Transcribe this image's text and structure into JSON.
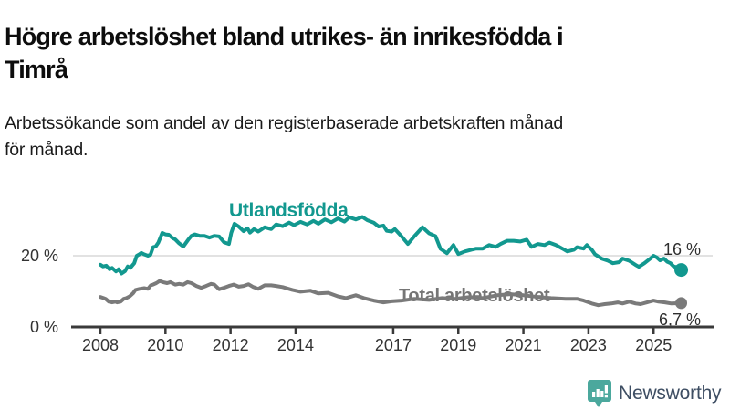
{
  "header": {
    "title_line1": "Högre arbetslöshet bland utrikes- än inrikesfödda i",
    "title_line2": "Timrå",
    "subtitle_line1": "Arbetssökande som andel av den registerbaserade arbetskraften månad",
    "subtitle_line2": "för månad."
  },
  "chart_data": {
    "type": "line",
    "unit": "%",
    "x_axis": {
      "range": [
        2007.9,
        2026.2
      ],
      "ticks": [
        2008,
        2010,
        2012,
        2014,
        2017,
        2019,
        2021,
        2023,
        2025
      ]
    },
    "y_axis": {
      "range": [
        0,
        33
      ],
      "ticks": [
        {
          "value": 0,
          "label": "0 %"
        },
        {
          "value": 20,
          "label": "20 %"
        }
      ]
    },
    "grid": "horizontal-20-only",
    "legend_position": "inline-labels",
    "series": [
      {
        "name": "Utlandsfödda",
        "color": "#12988F",
        "end_label": "16 %",
        "end_value": 16.0,
        "points": [
          [
            2008.0,
            17.5
          ],
          [
            2008.08,
            17.0
          ],
          [
            2008.18,
            17.2
          ],
          [
            2008.28,
            16.2
          ],
          [
            2008.36,
            16.6
          ],
          [
            2008.48,
            15.6
          ],
          [
            2008.56,
            16.2
          ],
          [
            2008.65,
            15.0
          ],
          [
            2008.76,
            15.7
          ],
          [
            2008.84,
            17.0
          ],
          [
            2008.92,
            16.6
          ],
          [
            2009.04,
            17.9
          ],
          [
            2009.12,
            20.0
          ],
          [
            2009.2,
            20.4
          ],
          [
            2009.26,
            20.8
          ],
          [
            2009.34,
            20.4
          ],
          [
            2009.46,
            20.0
          ],
          [
            2009.54,
            20.3
          ],
          [
            2009.62,
            22.4
          ],
          [
            2009.7,
            22.6
          ],
          [
            2009.78,
            23.7
          ],
          [
            2009.84,
            25.0
          ],
          [
            2009.9,
            26.4
          ],
          [
            2010.0,
            26.0
          ],
          [
            2010.1,
            25.9
          ],
          [
            2010.2,
            25.1
          ],
          [
            2010.3,
            24.6
          ],
          [
            2010.42,
            23.5
          ],
          [
            2010.55,
            22.6
          ],
          [
            2010.7,
            24.5
          ],
          [
            2010.8,
            25.6
          ],
          [
            2010.9,
            26.0
          ],
          [
            2011.05,
            25.6
          ],
          [
            2011.2,
            25.6
          ],
          [
            2011.35,
            25.1
          ],
          [
            2011.5,
            25.6
          ],
          [
            2011.65,
            25.4
          ],
          [
            2011.8,
            23.8
          ],
          [
            2011.95,
            23.3
          ],
          [
            2012.02,
            26.4
          ],
          [
            2012.12,
            29.0
          ],
          [
            2012.25,
            28.2
          ],
          [
            2012.4,
            26.9
          ],
          [
            2012.52,
            27.7
          ],
          [
            2012.6,
            26.5
          ],
          [
            2012.72,
            27.5
          ],
          [
            2012.85,
            26.8
          ],
          [
            2013.05,
            28.0
          ],
          [
            2013.25,
            27.5
          ],
          [
            2013.4,
            28.8
          ],
          [
            2013.6,
            28.3
          ],
          [
            2013.8,
            29.3
          ],
          [
            2013.95,
            28.6
          ],
          [
            2014.15,
            29.5
          ],
          [
            2014.35,
            28.8
          ],
          [
            2014.55,
            29.8
          ],
          [
            2014.7,
            29.0
          ],
          [
            2014.9,
            30.2
          ],
          [
            2015.1,
            29.4
          ],
          [
            2015.3,
            30.5
          ],
          [
            2015.5,
            29.6
          ],
          [
            2015.65,
            30.8
          ],
          [
            2015.85,
            30.2
          ],
          [
            2016.05,
            30.9
          ],
          [
            2016.2,
            30.0
          ],
          [
            2016.4,
            29.3
          ],
          [
            2016.55,
            28.2
          ],
          [
            2016.7,
            28.5
          ],
          [
            2016.8,
            27.0
          ],
          [
            2016.95,
            26.8
          ],
          [
            2017.05,
            27.5
          ],
          [
            2017.25,
            25.5
          ],
          [
            2017.45,
            23.3
          ],
          [
            2017.65,
            25.5
          ],
          [
            2017.9,
            28.0
          ],
          [
            2018.1,
            26.3
          ],
          [
            2018.3,
            25.5
          ],
          [
            2018.45,
            22.0
          ],
          [
            2018.65,
            20.7
          ],
          [
            2018.85,
            23.0
          ],
          [
            2019.0,
            20.5
          ],
          [
            2019.2,
            21.2
          ],
          [
            2019.4,
            21.7
          ],
          [
            2019.55,
            22.0
          ],
          [
            2019.75,
            22.0
          ],
          [
            2019.95,
            23.0
          ],
          [
            2020.15,
            22.5
          ],
          [
            2020.3,
            23.3
          ],
          [
            2020.5,
            24.2
          ],
          [
            2020.7,
            24.2
          ],
          [
            2020.9,
            24.0
          ],
          [
            2021.1,
            24.5
          ],
          [
            2021.25,
            22.5
          ],
          [
            2021.45,
            23.3
          ],
          [
            2021.65,
            23.0
          ],
          [
            2021.8,
            23.7
          ],
          [
            2022.0,
            23.0
          ],
          [
            2022.2,
            22.0
          ],
          [
            2022.35,
            21.2
          ],
          [
            2022.55,
            21.7
          ],
          [
            2022.65,
            22.4
          ],
          [
            2022.85,
            22.0
          ],
          [
            2022.95,
            23.0
          ],
          [
            2023.1,
            21.7
          ],
          [
            2023.2,
            20.4
          ],
          [
            2023.4,
            19.2
          ],
          [
            2023.6,
            18.6
          ],
          [
            2023.75,
            17.9
          ],
          [
            2023.95,
            18.2
          ],
          [
            2024.05,
            19.2
          ],
          [
            2024.25,
            18.6
          ],
          [
            2024.45,
            17.4
          ],
          [
            2024.55,
            16.9
          ],
          [
            2024.72,
            17.9
          ],
          [
            2024.9,
            19.2
          ],
          [
            2025.0,
            20.0
          ],
          [
            2025.1,
            19.5
          ],
          [
            2025.2,
            18.7
          ],
          [
            2025.32,
            19.2
          ],
          [
            2025.42,
            18.3
          ],
          [
            2025.52,
            17.9
          ],
          [
            2025.62,
            17.0
          ],
          [
            2025.75,
            16.7
          ],
          [
            2025.85,
            16.0
          ]
        ]
      },
      {
        "name": "Total arbetslöshet",
        "color": "#7A7A7A",
        "end_label": "6,7 %",
        "end_value": 6.7,
        "points": [
          [
            2008.0,
            8.4
          ],
          [
            2008.1,
            8.1
          ],
          [
            2008.16,
            7.9
          ],
          [
            2008.26,
            7.1
          ],
          [
            2008.36,
            6.9
          ],
          [
            2008.46,
            7.1
          ],
          [
            2008.52,
            6.9
          ],
          [
            2008.62,
            7.1
          ],
          [
            2008.72,
            7.9
          ],
          [
            2008.8,
            8.1
          ],
          [
            2008.9,
            8.6
          ],
          [
            2009.0,
            9.4
          ],
          [
            2009.08,
            10.4
          ],
          [
            2009.2,
            10.7
          ],
          [
            2009.35,
            10.9
          ],
          [
            2009.46,
            10.7
          ],
          [
            2009.55,
            11.7
          ],
          [
            2009.62,
            11.9
          ],
          [
            2009.72,
            12.3
          ],
          [
            2009.82,
            12.9
          ],
          [
            2009.92,
            12.6
          ],
          [
            2010.05,
            12.3
          ],
          [
            2010.15,
            12.6
          ],
          [
            2010.3,
            11.9
          ],
          [
            2010.42,
            12.1
          ],
          [
            2010.55,
            11.9
          ],
          [
            2010.68,
            12.6
          ],
          [
            2010.8,
            12.3
          ],
          [
            2010.95,
            11.5
          ],
          [
            2011.1,
            11.0
          ],
          [
            2011.25,
            11.5
          ],
          [
            2011.4,
            12.1
          ],
          [
            2011.5,
            11.9
          ],
          [
            2011.65,
            10.6
          ],
          [
            2011.8,
            11.0
          ],
          [
            2011.95,
            11.5
          ],
          [
            2012.1,
            11.9
          ],
          [
            2012.25,
            11.3
          ],
          [
            2012.4,
            11.5
          ],
          [
            2012.55,
            12.0
          ],
          [
            2012.7,
            11.2
          ],
          [
            2012.85,
            10.7
          ],
          [
            2013.05,
            11.7
          ],
          [
            2013.25,
            11.7
          ],
          [
            2013.4,
            11.5
          ],
          [
            2013.6,
            11.2
          ],
          [
            2013.9,
            10.4
          ],
          [
            2014.15,
            9.9
          ],
          [
            2014.45,
            10.2
          ],
          [
            2014.7,
            9.4
          ],
          [
            2015.0,
            9.6
          ],
          [
            2015.3,
            8.6
          ],
          [
            2015.55,
            8.1
          ],
          [
            2015.85,
            8.9
          ],
          [
            2016.1,
            8.1
          ],
          [
            2016.4,
            7.4
          ],
          [
            2016.7,
            6.9
          ],
          [
            2016.95,
            7.2
          ],
          [
            2017.25,
            7.4
          ],
          [
            2017.65,
            7.9
          ],
          [
            2018.1,
            7.6
          ],
          [
            2018.5,
            8.1
          ],
          [
            2018.9,
            7.9
          ],
          [
            2019.35,
            8.4
          ],
          [
            2019.75,
            8.1
          ],
          [
            2020.2,
            8.9
          ],
          [
            2020.6,
            9.2
          ],
          [
            2021.0,
            8.9
          ],
          [
            2021.45,
            8.4
          ],
          [
            2021.85,
            8.1
          ],
          [
            2022.3,
            7.9
          ],
          [
            2022.65,
            7.9
          ],
          [
            2022.85,
            7.4
          ],
          [
            2023.1,
            6.6
          ],
          [
            2023.3,
            6.1
          ],
          [
            2023.5,
            6.4
          ],
          [
            2023.7,
            6.6
          ],
          [
            2023.9,
            6.9
          ],
          [
            2024.05,
            6.6
          ],
          [
            2024.25,
            7.1
          ],
          [
            2024.45,
            6.6
          ],
          [
            2024.6,
            6.4
          ],
          [
            2024.8,
            6.9
          ],
          [
            2025.0,
            7.4
          ],
          [
            2025.15,
            7.1
          ],
          [
            2025.35,
            6.9
          ],
          [
            2025.55,
            6.6
          ],
          [
            2025.85,
            6.7
          ]
        ]
      }
    ]
  },
  "colors": {
    "axis": "#3A3A3A",
    "grid": "#D8D8D8",
    "tick_label": "#333333"
  },
  "footer": {
    "brand": "Newsworthy",
    "brand_color": "#3E4E63",
    "logo_color": "#4BA89D",
    "logo_icon": "bar-chart-speech-bubble-icon"
  }
}
